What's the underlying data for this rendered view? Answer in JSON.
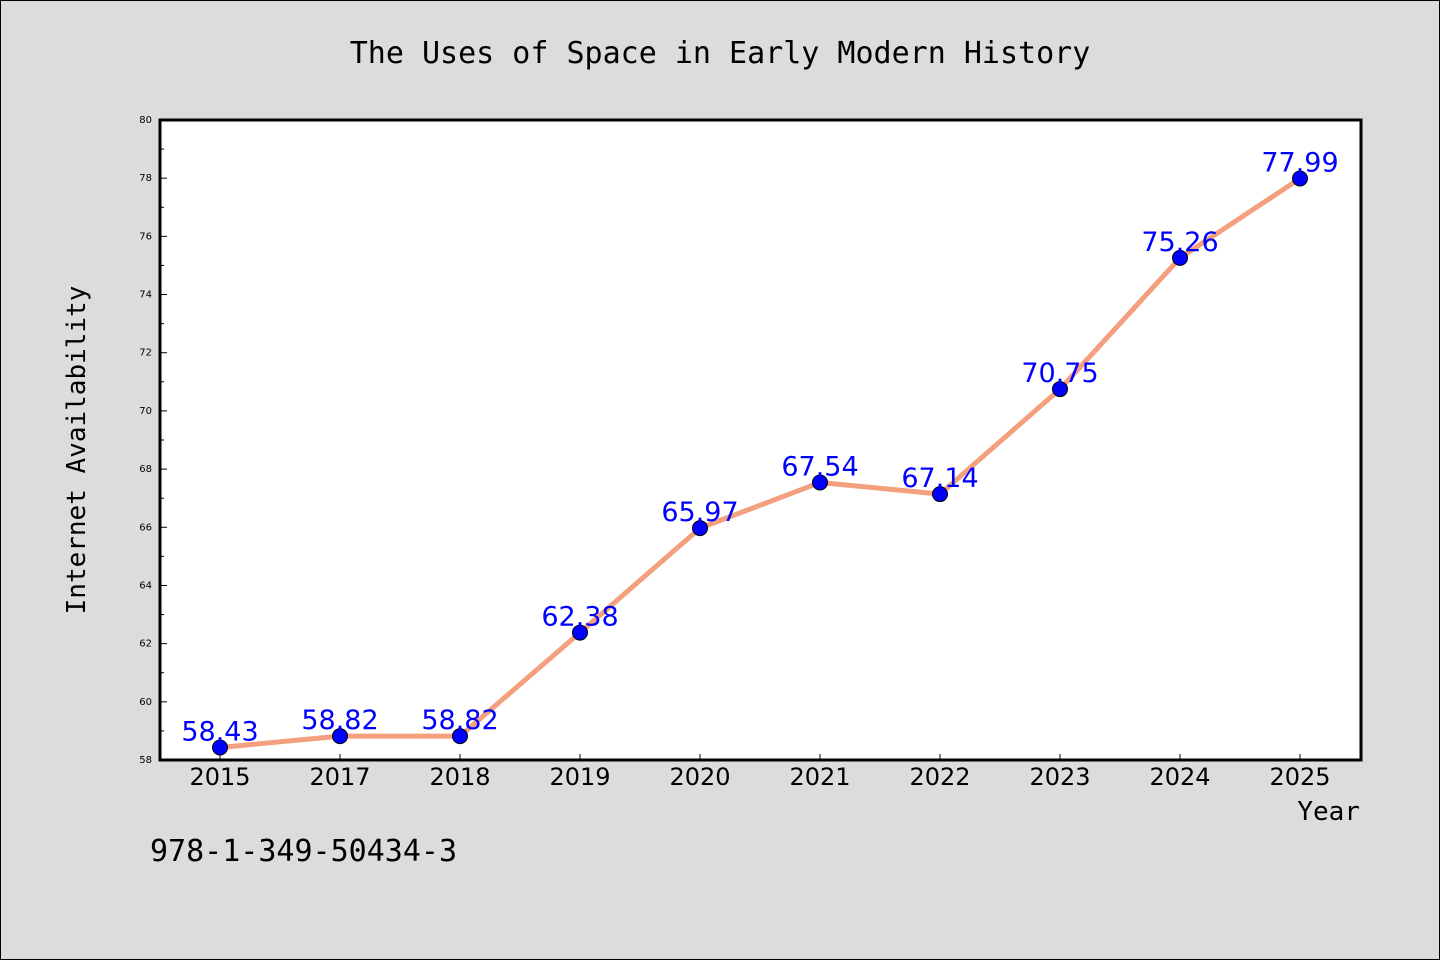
{
  "chart_data": {
    "type": "line",
    "title": "The Uses of Space in Early Modern History",
    "xlabel": "Year",
    "ylabel": "Internet Availability",
    "categories": [
      "2015",
      "2017",
      "2018",
      "2019",
      "2020",
      "2021",
      "2022",
      "2023",
      "2024",
      "2025"
    ],
    "series": [
      {
        "values": [
          58.43,
          58.82,
          58.82,
          62.38,
          65.97,
          67.54,
          67.14,
          70.75,
          75.26,
          77.99
        ],
        "labels": [
          "58.43",
          "58.82",
          "58.82",
          "62.38",
          "65.97",
          "67.54",
          "67.14",
          "70.75",
          "75.26",
          "77.99"
        ],
        "line_color": "#f4a07e",
        "marker_color": "#0000ff"
      }
    ],
    "ylim": [
      58,
      80
    ],
    "y_ticks": [
      "58",
      "60",
      "62",
      "64",
      "66",
      "68",
      "70",
      "72",
      "74",
      "76",
      "78",
      "80"
    ],
    "label_color": "#0000ff",
    "grid": false
  },
  "footer": {
    "isbn": "978-1-349-50434-3"
  }
}
